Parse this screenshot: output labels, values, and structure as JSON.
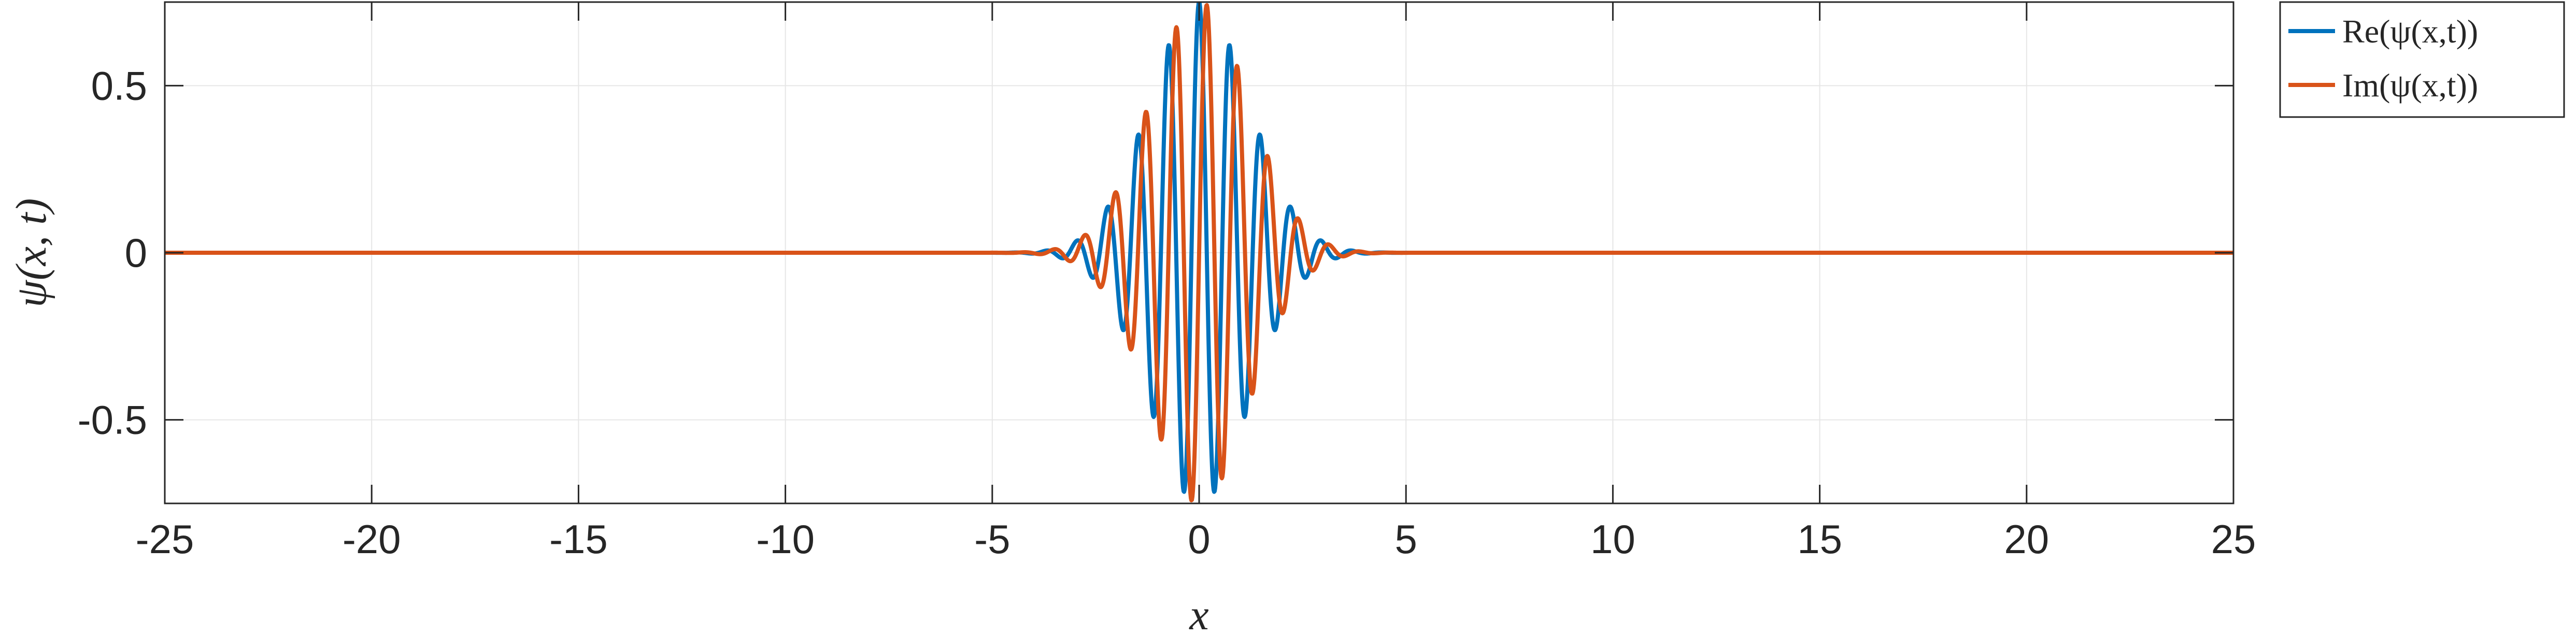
{
  "chart_data": {
    "type": "line",
    "title": "",
    "xlabel": "x",
    "ylabel": "ψ(x, t)",
    "xlim": [
      -25,
      25
    ],
    "ylim": [
      -0.75,
      0.75
    ],
    "x_ticks": [
      -25,
      -20,
      -15,
      -10,
      -5,
      0,
      5,
      10,
      15,
      20,
      25
    ],
    "x_tick_labels": [
      "-25",
      "-20",
      "-15",
      "-10",
      "-5",
      "0",
      "5",
      "10",
      "15",
      "20",
      "25"
    ],
    "y_ticks": [
      -0.5,
      0,
      0.5
    ],
    "y_tick_labels": [
      "-0.5",
      "0",
      "0.5"
    ],
    "grid": true,
    "legend_position": "outside-top-right",
    "wave_packet": {
      "center": 0,
      "envelope_amplitude": 0.75,
      "envelope_sigma": 1.2,
      "wavenumber": 8.5,
      "x_min": -25,
      "x_max": 25,
      "num_samples": 4001
    },
    "series": [
      {
        "name": "Re(ψ(x,t))",
        "part": "real",
        "color": "#0072BD"
      },
      {
        "name": "Im(ψ(x,t))",
        "part": "imag",
        "color": "#D95319"
      }
    ]
  }
}
